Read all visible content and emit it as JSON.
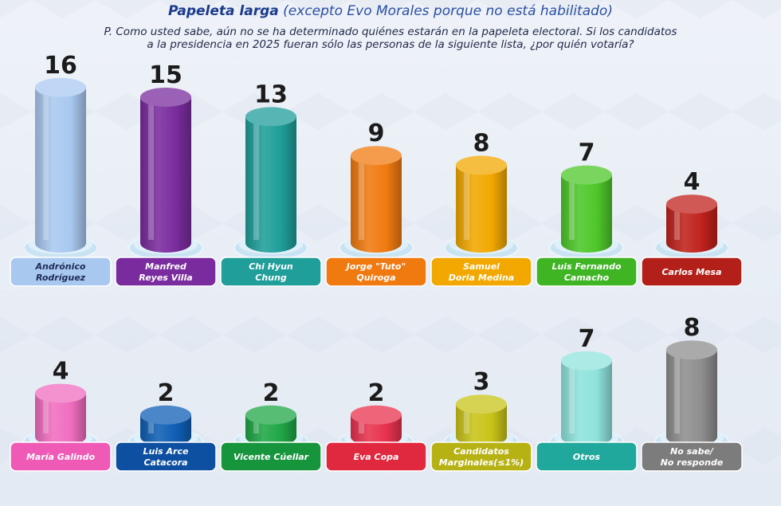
{
  "header": {
    "title_bold": "Papeleta larga",
    "title_rest": "(excepto Evo Morales porque no está habilitado)",
    "question_line1": "P. Como usted sabe, aún no se ha determinado quiénes estarán en la papeleta electoral. Si los candidatos",
    "question_line2": "a la presidencia en 2025 fueran sólo las personas de la siguiente lista, ¿por quién votaría?"
  },
  "chart_data": {
    "type": "bar",
    "title": "Papeleta larga",
    "rows": [
      {
        "categories": [
          [
            "Andrónico",
            "Rodríguez"
          ],
          [
            "Manfred",
            "Reyes Villa"
          ],
          [
            "Chi Hyun",
            "Chung"
          ],
          [
            "Jorge \"Tuto\"",
            "Quiroga"
          ],
          [
            "Samuel",
            "Doria Medina"
          ],
          [
            "Luis Fernando",
            "Camacho"
          ],
          [
            "Carlos Mesa"
          ]
        ],
        "values": [
          16,
          15,
          13,
          9,
          8,
          7,
          4
        ],
        "colors": [
          "#a9c8f0",
          "#7a2c9e",
          "#1f9e9a",
          "#f07a10",
          "#f2a800",
          "#4ec72a",
          "#c0221c"
        ],
        "label_bg": [
          "#a9c8f0",
          "#7a2c9e",
          "#1f9e9a",
          "#f07a10",
          "#f2a800",
          "#3fb524",
          "#b3201a"
        ],
        "label_fg": [
          "#1d2c55",
          "#ffffff",
          "#ffffff",
          "#ffffff",
          "#ffffff",
          "#ffffff",
          "#ffffff"
        ]
      },
      {
        "categories": [
          [
            "María Galindo"
          ],
          [
            "Luis Arce",
            "Catacora"
          ],
          [
            "Vicente Cúellar"
          ],
          [
            "Eva Copa"
          ],
          [
            "Candidatos",
            "Marginales(≤1%)"
          ],
          [
            "Otros"
          ],
          [
            "No sabe/",
            "No responde"
          ]
        ],
        "values": [
          4,
          2,
          2,
          2,
          3,
          7,
          8
        ],
        "colors": [
          "#f06ec0",
          "#0f5fb5",
          "#1fa646",
          "#e8324e",
          "#c9c418",
          "#8fe3dc",
          "#8e8e8e"
        ],
        "label_bg": [
          "#ee5ab5",
          "#0d4fa0",
          "#17953d",
          "#e0283f",
          "#b7b214",
          "#20a89c",
          "#7c7c7c"
        ],
        "label_fg": [
          "#ffffff",
          "#ffffff",
          "#ffffff",
          "#ffffff",
          "#ffffff",
          "#ffffff",
          "#ffffff"
        ]
      }
    ]
  }
}
